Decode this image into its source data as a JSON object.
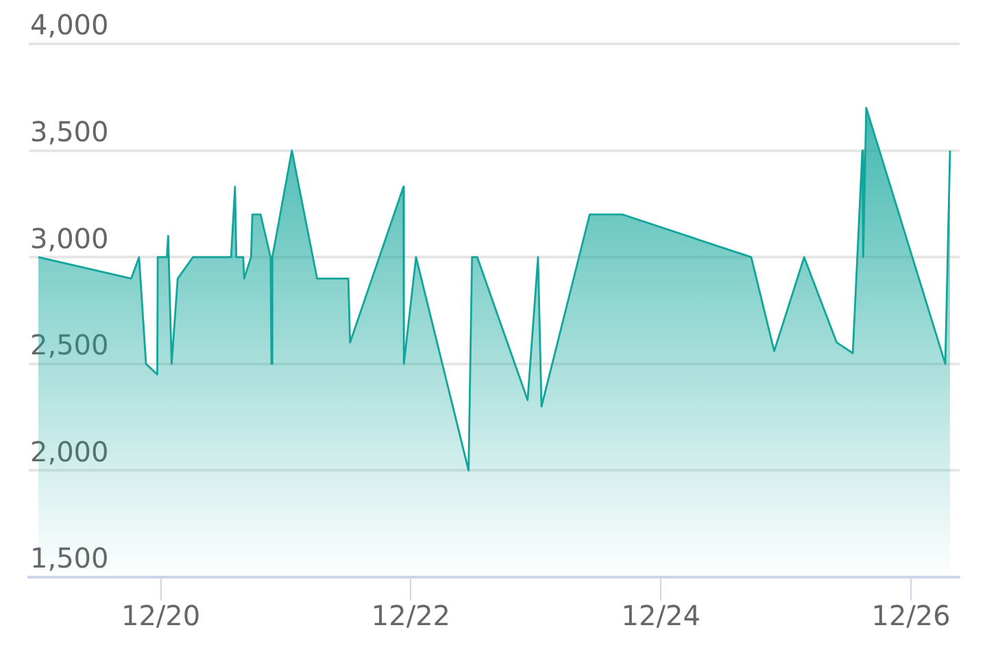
{
  "chart_data": {
    "type": "area",
    "color": "#11a59b",
    "marker": "none",
    "line_style": "solid",
    "grid": "y",
    "legend": false,
    "x": [
      "--12-19T00:30",
      "--12-19T18:20",
      "--12-19T19:50",
      "--12-19T21:10",
      "--12-19T23:20",
      "--12-19T23:25",
      "--12-20T01:10",
      "--12-20T01:25",
      "--12-20T02:05",
      "--12-20T03:15",
      "--12-20T06:10",
      "--12-20T13:30",
      "--12-20T14:15",
      "--12-20T14:30",
      "--12-20T15:50",
      "--12-20T16:00",
      "--12-20T17:20",
      "--12-20T17:35",
      "--12-20T19:10",
      "--12-20T21:05",
      "--12-20T21:15",
      "--12-20T21:25",
      "--12-21T01:10",
      "--12-21T06:00",
      "--12-21T12:00",
      "--12-21T12:20",
      "--12-21T22:35",
      "--12-21T22:40",
      "--12-22T01:00",
      "--12-22T11:05",
      "--12-22T11:45",
      "--12-22T12:45",
      "--12-22T22:25",
      "--12-23T00:25",
      "--12-23T01:05",
      "--12-23T10:20",
      "--12-23T16:40",
      "--12-24T17:20",
      "--12-24T21:45",
      "--12-25T03:30",
      "--12-25T09:45",
      "--12-25T12:50",
      "--12-25T14:40",
      "--12-25T14:50",
      "--12-25T15:25",
      "--12-26T06:35",
      "--12-26T07:30"
    ],
    "values": [
      3000,
      2900,
      3000,
      2500,
      2450,
      3000,
      3000,
      3100,
      2500,
      2900,
      3000,
      3000,
      3330,
      3000,
      3000,
      2900,
      3000,
      3200,
      3200,
      3000,
      2500,
      3000,
      3500,
      2900,
      2900,
      2600,
      3330,
      2500,
      3000,
      2000,
      3000,
      3000,
      2330,
      3000,
      2300,
      3200,
      3200,
      3000,
      2560,
      3000,
      2600,
      2550,
      3500,
      3000,
      3700,
      2500,
      3500
    ],
    "xlim": [
      "--12-18T22:40",
      "--12-26T09:20"
    ],
    "xticks": [
      {
        "value": "--12-20",
        "label": "12/20"
      },
      {
        "value": "--12-22",
        "label": "12/22"
      },
      {
        "value": "--12-24",
        "label": "12/24"
      },
      {
        "value": "--12-26",
        "label": "12/26"
      }
    ],
    "ylim": [
      1500,
      4000
    ],
    "yticks": [
      {
        "value": 1500,
        "label": "1,500"
      },
      {
        "value": 2000,
        "label": "2,000"
      },
      {
        "value": 2500,
        "label": "2,500"
      },
      {
        "value": 3000,
        "label": "3,000"
      },
      {
        "value": 3500,
        "label": "3,500"
      },
      {
        "value": 4000,
        "label": "4,000"
      }
    ]
  }
}
